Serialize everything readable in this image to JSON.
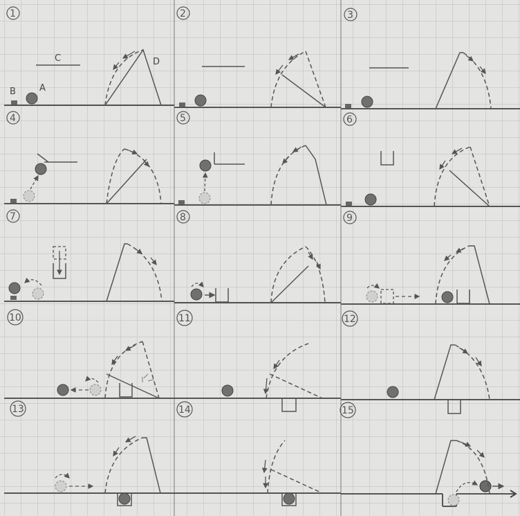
{
  "figure": {
    "panels": [
      {
        "number": "1"
      },
      {
        "number": "2"
      },
      {
        "number": "3"
      },
      {
        "number": "4"
      },
      {
        "number": "5"
      },
      {
        "number": "6"
      },
      {
        "number": "7"
      },
      {
        "number": "8"
      },
      {
        "number": "9"
      },
      {
        "number": "10"
      },
      {
        "number": "11"
      },
      {
        "number": "12"
      },
      {
        "number": "13"
      },
      {
        "number": "14"
      },
      {
        "number": "15"
      }
    ],
    "labels": {
      "a": "A",
      "b": "B",
      "c": "C",
      "d": "D"
    }
  },
  "colors": {
    "paper": "#e4e4e2",
    "grid": "#b9b9b9",
    "pencil": "#555555",
    "ball": "#6f6f6f",
    "ball_ghost": "#bdbdbd"
  }
}
